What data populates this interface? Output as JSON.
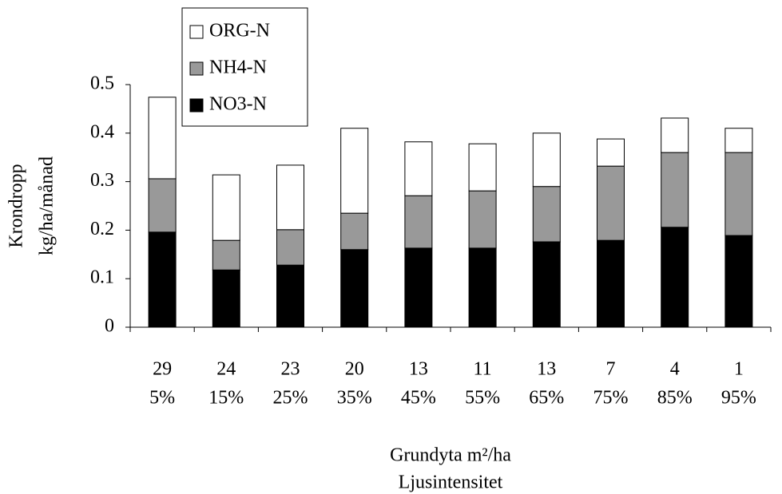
{
  "chart_data": {
    "type": "stacked-bar",
    "categories": [
      "29",
      "24",
      "23",
      "20",
      "13",
      "11",
      "13",
      "7",
      "4",
      "1"
    ],
    "categories2": [
      "5%",
      "15%",
      "25%",
      "35%",
      "45%",
      "55%",
      "65%",
      "75%",
      "85%",
      "95%"
    ],
    "series": [
      {
        "name": "NO3-N",
        "color": "#000000",
        "values": [
          0.196,
          0.118,
          0.128,
          0.16,
          0.163,
          0.163,
          0.176,
          0.179,
          0.206,
          0.189
        ]
      },
      {
        "name": "NH4-N",
        "color": "#999999",
        "values": [
          0.11,
          0.061,
          0.073,
          0.075,
          0.108,
          0.118,
          0.114,
          0.153,
          0.154,
          0.171
        ]
      },
      {
        "name": "ORG-N",
        "color": "#ffffff",
        "values": [
          0.168,
          0.135,
          0.133,
          0.175,
          0.111,
          0.097,
          0.11,
          0.056,
          0.071,
          0.05
        ]
      }
    ],
    "ylabel": [
      "Krondropp",
      "kg/ha/månad"
    ],
    "xlabel": [
      "Grundyta m²/ha",
      "Ljusintensitet"
    ],
    "ylim": [
      0,
      0.5
    ],
    "yticks": [
      0,
      0.1,
      0.2,
      0.3,
      0.4,
      0.5
    ],
    "legend": "top-left"
  }
}
